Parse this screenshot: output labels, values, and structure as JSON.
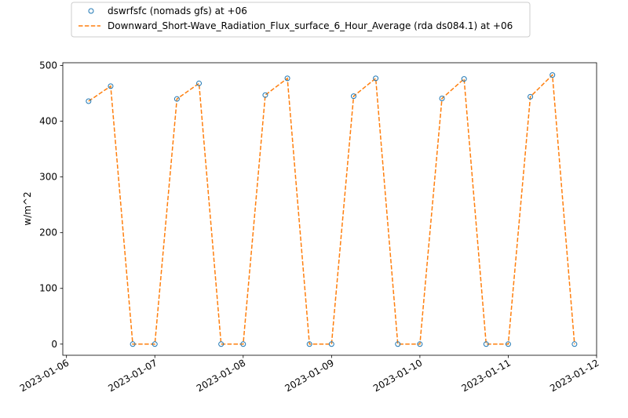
{
  "chart_data": {
    "type": "line",
    "title": "",
    "xlabel": "",
    "ylabel": "w/m^2",
    "xlim": [
      "2023-01-05T23:00",
      "2023-01-12T00:00"
    ],
    "ylim": [
      -20,
      505
    ],
    "x_ticks": [
      "2023-01-06",
      "2023-01-07",
      "2023-01-08",
      "2023-01-09",
      "2023-01-10",
      "2023-01-11",
      "2023-01-12"
    ],
    "y_ticks": [
      0,
      100,
      200,
      300,
      400,
      500
    ],
    "grid": false,
    "legend": {
      "placement": "top-left, above plot"
    },
    "x": [
      "2023-01-06T06:00",
      "2023-01-06T12:00",
      "2023-01-06T18:00",
      "2023-01-07T00:00",
      "2023-01-07T06:00",
      "2023-01-07T12:00",
      "2023-01-07T18:00",
      "2023-01-08T00:00",
      "2023-01-08T06:00",
      "2023-01-08T12:00",
      "2023-01-08T18:00",
      "2023-01-09T00:00",
      "2023-01-09T06:00",
      "2023-01-09T12:00",
      "2023-01-09T18:00",
      "2023-01-10T00:00",
      "2023-01-10T06:00",
      "2023-01-10T12:00",
      "2023-01-10T18:00",
      "2023-01-11T00:00",
      "2023-01-11T06:00",
      "2023-01-11T12:00",
      "2023-01-11T18:00"
    ],
    "series": [
      {
        "name": "dswrfsfc (nomads gfs) at +06",
        "style": "scatter",
        "color": "#1f77b4",
        "values": [
          436,
          463,
          0,
          0,
          440,
          468,
          0,
          0,
          447,
          477,
          0,
          0,
          445,
          477,
          0,
          0,
          441,
          476,
          0,
          0,
          444,
          483,
          0
        ]
      },
      {
        "name": "Downward_Short-Wave_Radiation_Flux_surface_6_Hour_Average (rda ds084.1) at +06",
        "style": "dashed-line",
        "color": "#ff7f0e",
        "values": [
          436,
          463,
          0,
          0,
          440,
          468,
          0,
          0,
          447,
          477,
          0,
          0,
          445,
          477,
          0,
          0,
          441,
          476,
          0,
          0,
          444,
          483,
          0
        ]
      }
    ]
  }
}
